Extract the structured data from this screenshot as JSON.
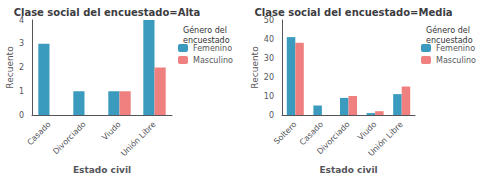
{
  "chart_data": [
    {
      "type": "bar",
      "title": "Clase social del encuestado=Alta",
      "xlabel": "Estado civil",
      "ylabel": "Recuento",
      "categories": [
        "Casado",
        "Divorciado",
        "Viudo",
        "Unión Libre"
      ],
      "series": [
        {
          "name": "Femenino",
          "color": "#3a9bbf",
          "values": [
            3,
            1,
            1,
            4
          ]
        },
        {
          "name": "Masculino",
          "color": "#f08080",
          "values": [
            0,
            0,
            1,
            2
          ]
        }
      ],
      "ylim": [
        0,
        4
      ],
      "yticks": [
        0,
        1,
        2,
        3,
        4
      ],
      "grid": false,
      "legend": "right",
      "legend_title": "Género del\nencuestado"
    },
    {
      "type": "bar",
      "title": "Clase social del encuestado=Media",
      "xlabel": "Estado civil",
      "ylabel": "Recuento",
      "categories": [
        "Soltero",
        "Casado",
        "Divorciado",
        "Viudo",
        "Unión Libre"
      ],
      "series": [
        {
          "name": "Femenino",
          "color": "#3a9bbf",
          "values": [
            41,
            5,
            9,
            1,
            11
          ]
        },
        {
          "name": "Masculino",
          "color": "#f08080",
          "values": [
            38,
            0,
            10,
            2,
            15
          ]
        }
      ],
      "ylim": [
        0,
        50
      ],
      "yticks": [
        0,
        10,
        20,
        30,
        40,
        50
      ],
      "grid": false,
      "legend": "right",
      "legend_title": "Género del\nencuestado"
    }
  ]
}
